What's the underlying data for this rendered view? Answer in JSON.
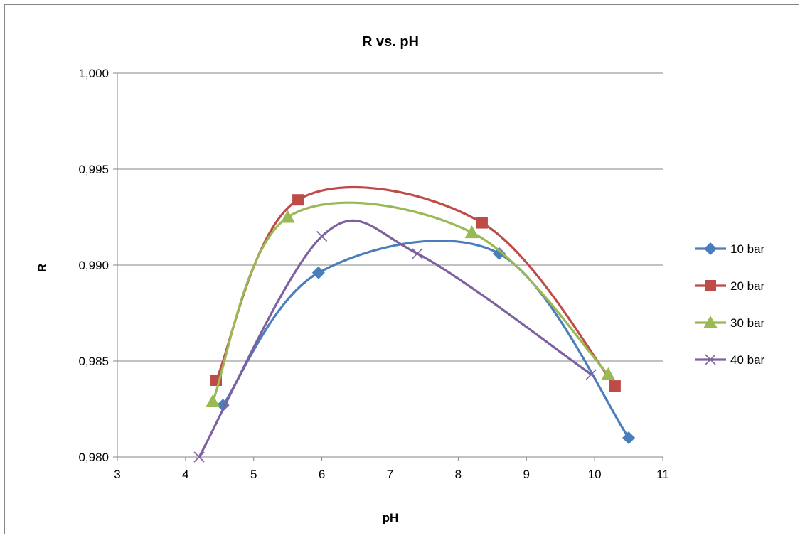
{
  "chart_data": {
    "type": "line",
    "title": "R vs. pH",
    "xlabel": "pH",
    "ylabel": "R",
    "xlim": [
      3,
      11
    ],
    "ylim": [
      0.98,
      1.0
    ],
    "x_ticks": [
      "3",
      "4",
      "5",
      "6",
      "7",
      "8",
      "9",
      "10",
      "11"
    ],
    "y_ticks": [
      "0,980",
      "0,985",
      "0,990",
      "0,995",
      "1,000"
    ],
    "grid": "horizontal",
    "legend_position": "right",
    "smooth": true,
    "series": [
      {
        "name": "10 bar",
        "color": "#4a7ebb",
        "marker": "diamond",
        "points": [
          [
            4.55,
            0.9827
          ],
          [
            5.95,
            0.9896
          ],
          [
            8.6,
            0.9906
          ],
          [
            10.5,
            0.981
          ]
        ]
      },
      {
        "name": "20 bar",
        "color": "#be4b48",
        "marker": "square",
        "points": [
          [
            4.45,
            0.984
          ],
          [
            5.65,
            0.9934
          ],
          [
            8.35,
            0.9922
          ],
          [
            10.3,
            0.9837
          ]
        ]
      },
      {
        "name": "30 bar",
        "color": "#98b954",
        "marker": "triangle",
        "points": [
          [
            4.4,
            0.9829
          ],
          [
            5.5,
            0.9925
          ],
          [
            8.2,
            0.9917
          ],
          [
            10.2,
            0.9843
          ]
        ]
      },
      {
        "name": "40 bar",
        "color": "#7d60a0",
        "marker": "x",
        "points": [
          [
            4.2,
            0.98
          ],
          [
            6.0,
            0.9915
          ],
          [
            7.4,
            0.9906
          ],
          [
            9.95,
            0.9843
          ]
        ]
      }
    ]
  }
}
